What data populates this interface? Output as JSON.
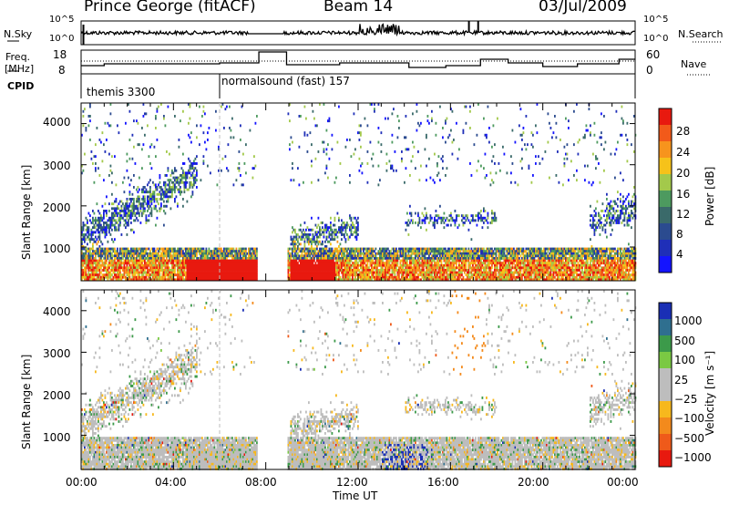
{
  "header": {
    "station": "Prince George (fitACF)",
    "beam": "Beam 14",
    "date": "03/Jul/2009"
  },
  "panels": {
    "nsky": {
      "left_label": "N.Sky",
      "left_ticks": [
        "10^5",
        "10^0"
      ],
      "right_ticks": [
        "10^5",
        "10^0"
      ],
      "right_label": "N.Search"
    },
    "freq": {
      "left_label_1": "Freq.",
      "left_label_2": "[MHz]",
      "left_ticks": [
        "18",
        "8"
      ],
      "right_ticks": [
        "60",
        "0"
      ],
      "right_label": "Nave"
    },
    "cpid": {
      "label": "CPID",
      "modes": [
        "themis 3300",
        "normalsound (fast) 157"
      ]
    }
  },
  "chart_data": [
    {
      "type": "heatmap",
      "name": "power",
      "ylabel": "Slant Range [km]",
      "yticks": [
        "1000",
        "2000",
        "3000",
        "4000"
      ],
      "xticks": [
        "00:00",
        "04:00",
        "08:00",
        "12:00",
        "16:00",
        "20:00",
        "00:00"
      ],
      "ylim": [
        180,
        4500
      ],
      "xlim_hours": [
        0,
        24
      ],
      "colorbar": {
        "label": "Power [dB]",
        "ticks": [
          "28",
          "24",
          "20",
          "16",
          "12",
          "8",
          "4"
        ],
        "colors": [
          "#e8190f",
          "#f25a1a",
          "#f7941d",
          "#f6c21a",
          "#a3c94b",
          "#4d9a5f",
          "#3a6a6a",
          "#2b4b8f",
          "#1f2fb8",
          "#1414ff"
        ]
      },
      "data_gap_hours": [
        7.6,
        8.9
      ],
      "mode_change_hour": 6.0
    },
    {
      "type": "heatmap",
      "name": "velocity",
      "ylabel": "Slant Range [km]",
      "yticks": [
        "1000",
        "2000",
        "3000",
        "4000"
      ],
      "xticks": [
        "00:00",
        "04:00",
        "08:00",
        "12:00",
        "16:00",
        "20:00",
        "00:00"
      ],
      "xlabel": "Time UT",
      "ylim": [
        180,
        4500
      ],
      "xlim_hours": [
        0,
        24
      ],
      "colorbar": {
        "label": "Velocity [m s⁻¹]",
        "ticks": [
          "1000",
          "500",
          "100",
          "25",
          "−25",
          "−100",
          "−500",
          "−1000"
        ],
        "colors": [
          "#1a2fb5",
          "#2f6f8f",
          "#3c9a4a",
          "#7ac943",
          "#bdbdbd",
          "#bdbdbd",
          "#f7b81d",
          "#f38a1c",
          "#ef5a1a",
          "#e8190f"
        ]
      },
      "data_gap_hours": [
        7.6,
        8.9
      ],
      "mode_change_hour": 6.0
    }
  ]
}
